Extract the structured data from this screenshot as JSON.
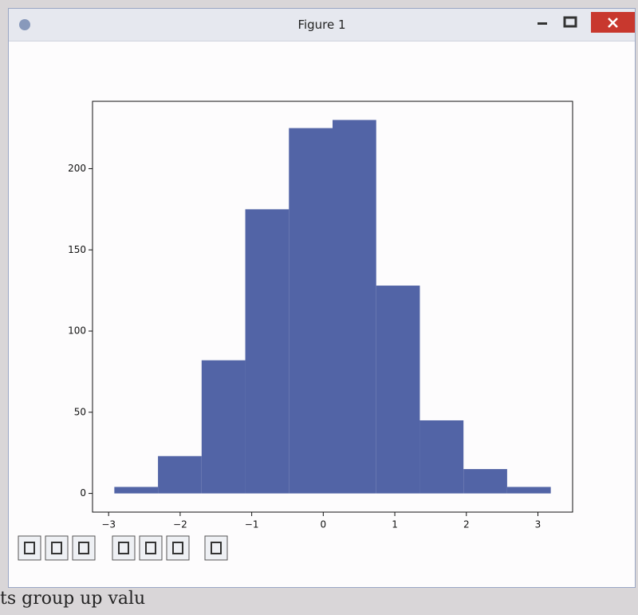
{
  "window": {
    "title": "Figure 1"
  },
  "chart_data": {
    "type": "histogram",
    "bins": [
      -2.92,
      -2.31,
      -1.7,
      -1.09,
      -0.48,
      0.13,
      0.74,
      1.35,
      1.96,
      2.57,
      3.18
    ],
    "values": [
      4,
      23,
      82,
      175,
      225,
      230,
      128,
      45,
      15,
      4
    ],
    "color": "#5264a6",
    "xlim": [
      -3.225,
      3.485
    ],
    "ylim": [
      -11.5,
      241.5
    ],
    "xticks": [
      {
        "value": -3,
        "label": "−3"
      },
      {
        "value": -2,
        "label": "−2"
      },
      {
        "value": -1,
        "label": "−1"
      },
      0,
      1,
      2,
      3
    ],
    "yticks": [
      0,
      50,
      100,
      150,
      200
    ],
    "grid": false
  },
  "page_text": "ts group up valu"
}
